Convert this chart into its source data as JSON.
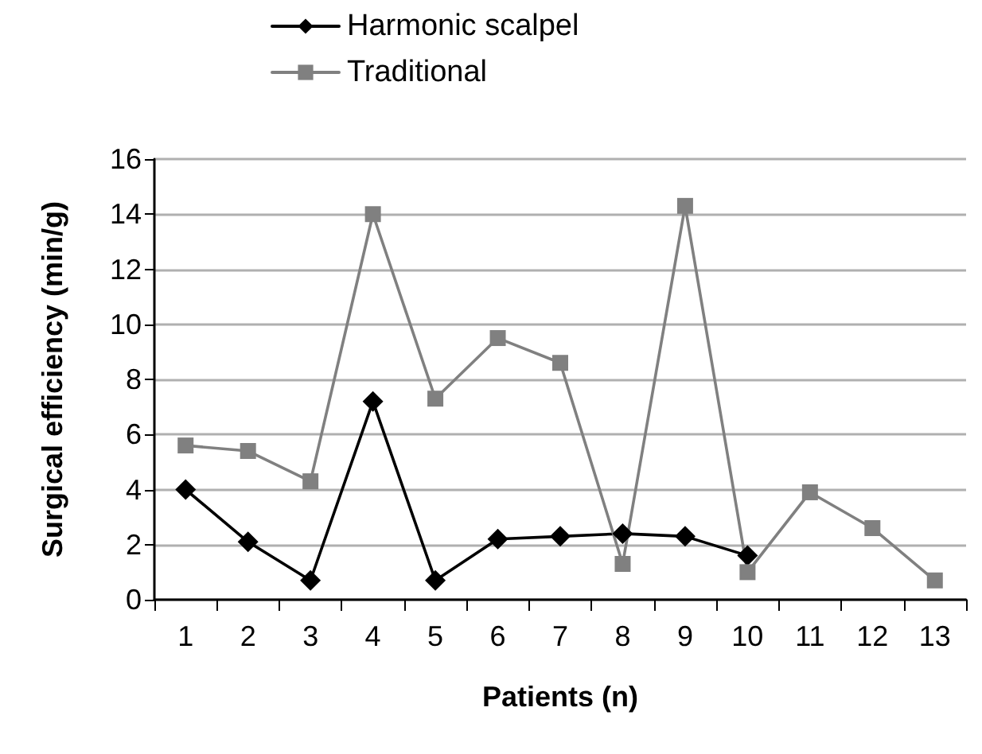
{
  "chart_data": {
    "type": "line",
    "xlabel": "Patients (n)",
    "ylabel": "Surgical efficiency (min/g)",
    "categories": [
      "1",
      "2",
      "3",
      "4",
      "5",
      "6",
      "7",
      "8",
      "9",
      "10",
      "11",
      "12",
      "13"
    ],
    "series": [
      {
        "name": "Harmonic scalpel",
        "color": "#000000",
        "marker": "diamond",
        "values": [
          4.0,
          2.1,
          0.7,
          7.2,
          0.7,
          2.2,
          2.3,
          2.4,
          2.3,
          1.6,
          null,
          null,
          null
        ]
      },
      {
        "name": "Traditional",
        "color": "#808080",
        "marker": "square",
        "values": [
          5.6,
          5.4,
          4.3,
          14.0,
          7.3,
          9.5,
          8.6,
          1.3,
          14.3,
          1.0,
          3.9,
          2.6,
          0.7
        ]
      }
    ],
    "ylim": [
      0,
      16
    ],
    "yticks": [
      0,
      2,
      4,
      6,
      8,
      10,
      12,
      14,
      16
    ],
    "grid": "y",
    "legend": "top",
    "line_style": "solid"
  }
}
